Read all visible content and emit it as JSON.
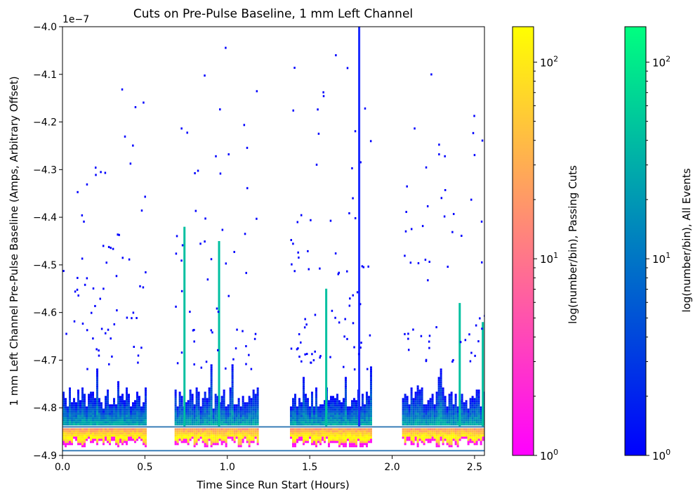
{
  "chart_data": {
    "type": "heatmap",
    "title": "Cuts on Pre-Pulse Baseline, 1 mm Left Channel",
    "xlabel": "Time Since Run Start (Hours)",
    "ylabel": "1 mm Left Channel Pre-Pulse Baseline (Amps, Arbitrary Offset)",
    "y_offset_label": "1e−7",
    "xlim": [
      0.0,
      2.56
    ],
    "ylim": [
      -4.9,
      -4.0
    ],
    "xticks": [
      0.0,
      0.5,
      1.0,
      1.5,
      2.0,
      2.5
    ],
    "xtick_labels": [
      "0.0",
      "0.5",
      "1.0",
      "1.5",
      "2.0",
      "2.5"
    ],
    "yticks": [
      -4.9,
      -4.8,
      -4.7,
      -4.6,
      -4.5,
      -4.4,
      -4.3,
      -4.2,
      -4.1,
      -4.0
    ],
    "ytick_labels": [
      "−4.9",
      "−4.8",
      "−4.7",
      "−4.6",
      "−4.5",
      "−4.4",
      "−4.3",
      "−4.2",
      "−4.1",
      "−4.0"
    ],
    "cut_lines": [
      -4.84,
      -4.89
    ],
    "cut_line_color": "#3a7fb8",
    "segments": [
      [
        0.0,
        0.5
      ],
      [
        0.68,
        1.18
      ],
      [
        1.38,
        1.87
      ],
      [
        2.06,
        2.56
      ]
    ],
    "spikes": [
      {
        "x": 0.74,
        "top": -4.42
      },
      {
        "x": 0.95,
        "top": -4.45
      },
      {
        "x": 1.6,
        "top": -4.55
      },
      {
        "x": 1.8,
        "top": -4.0
      },
      {
        "x": 2.41,
        "top": -4.58
      },
      {
        "x": 2.55,
        "top": -4.62
      }
    ],
    "colorbars": [
      {
        "label": "log(number/bin), Passing Cuts",
        "colors": [
          "#ff00ff",
          "#ff8080",
          "#ffff00"
        ],
        "ticks": [
          {
            "base": "10",
            "exp": "0"
          },
          {
            "base": "10",
            "exp": "1"
          },
          {
            "base": "10",
            "exp": "2"
          }
        ],
        "log_range": [
          0,
          2.18
        ]
      },
      {
        "label": "log(number/bin), All Events",
        "colors": [
          "#0000ff",
          "#0080c0",
          "#00ff80"
        ],
        "ticks": [
          {
            "base": "10",
            "exp": "0"
          },
          {
            "base": "10",
            "exp": "1"
          },
          {
            "base": "10",
            "exp": "2"
          }
        ],
        "log_range": [
          0,
          2.18
        ]
      }
    ]
  }
}
